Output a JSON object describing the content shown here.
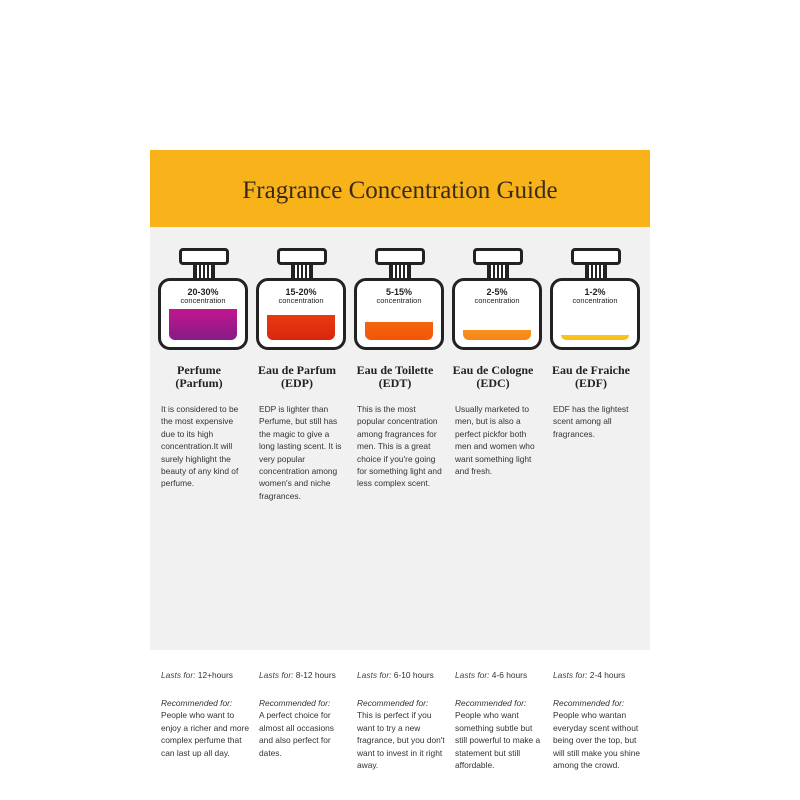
{
  "title": "Fragrance Concentration Guide",
  "lasts_label": "Lasts for:",
  "recommended_label": "Recommended for:",
  "concentration_word": "concentration",
  "types": [
    {
      "percent": "20-30%",
      "name": "Perfume",
      "abbr": "(Parfum)",
      "fill_percent": 60,
      "color_top": "#c2168e",
      "color_bottom": "#861b88",
      "description": "It is considered to be the most expensive due to its high concentration.It will surely highlight the beauty of any kind of perfume.",
      "lasts": "12+hours",
      "recommended": "People who want to enjoy a richer and more complex perfume that can last up all day."
    },
    {
      "percent": "15-20%",
      "name": "Eau de Parfum",
      "abbr": "(EDP)",
      "fill_percent": 48,
      "color_top": "#e83a10",
      "color_bottom": "#d8260e",
      "description": "EDP is lighter than Perfume, but still has the magic to give a long lasting scent. It is very popular concentration among women's and niche fragrances.",
      "lasts": "8-12 hours",
      "recommended": "A perfect choice for almost all occasions and also perfect for dates."
    },
    {
      "percent": "5-15%",
      "name": "Eau de Toilette",
      "abbr": "(EDT)",
      "fill_percent": 34,
      "color_top": "#f5650c",
      "color_bottom": "#f2550a",
      "description": "This is the most popular concentration among fragrances for men. This is a great choice if you're going for something light and less complex scent.",
      "lasts": "6-10 hours",
      "recommended": "This is perfect if you want to try a new fragrance, but you don't want to invest in it right away."
    },
    {
      "percent": "2-5%",
      "name": "Eau de Cologne",
      "abbr": "(EDC)",
      "fill_percent": 20,
      "color_top": "#f8921a",
      "color_bottom": "#f6861a",
      "description": "Usually marketed to men, but is also a perfect pickfor both men and women who want something light and fresh.",
      "lasts": "4-6 hours",
      "recommended": "People who want something subtle but still powerful to make a statement but still affordable."
    },
    {
      "percent": "1-2%",
      "name": "Eau de Fraiche",
      "abbr": "(EDF)",
      "fill_percent": 10,
      "color_top": "#f9c61c",
      "color_bottom": "#f8bd18",
      "description": "EDF has the lightest scent among all fragrances.",
      "lasts": "2-4 hours",
      "recommended": "People who wantan everyday scent without being over the top, but will still make you shine among the crowd."
    }
  ]
}
